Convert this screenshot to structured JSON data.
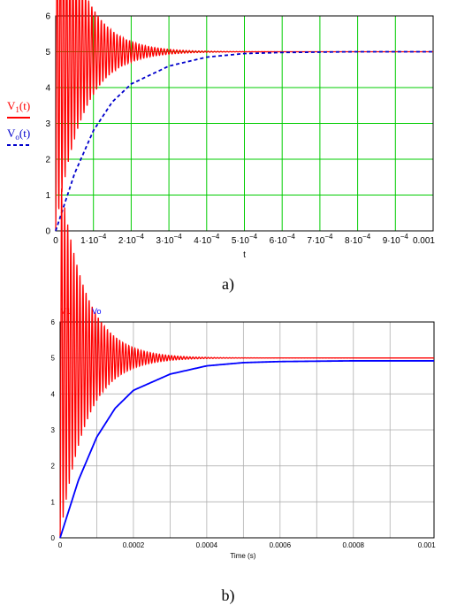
{
  "colors": {
    "v1": "#ff0000",
    "vo_a": "#0000cc",
    "vo_b": "#0000ff",
    "grid_a": "#00cc00",
    "grid_b": "#b0b0b0"
  },
  "chart_data": [
    {
      "type": "line",
      "caption": "a)",
      "xlabel": "t",
      "ylabel": "",
      "xlim": [
        0,
        0.001
      ],
      "ylim": [
        0,
        6
      ],
      "grid": true,
      "x_tick_labels": [
        "0",
        "1·10",
        "2·10",
        "3·10",
        "4·10",
        "5·10",
        "6·10",
        "7·10",
        "8·10",
        "9·10",
        "0.001"
      ],
      "x_tick_exponent": "−4",
      "y_tick_labels": [
        "0",
        "1",
        "2",
        "3",
        "4",
        "5",
        "6"
      ],
      "legend_position": "left",
      "series": [
        {
          "name": "V1(t)",
          "legend_main": "V",
          "legend_sub": "1",
          "legend_suffix": "(t)",
          "style": "solid",
          "description": "damped oscillation: 5·(1 − e^(−t/τ1)·cos(ωt)), τ1≈7e-5 s, f≈120 kHz, peak ≈5.8 near t≈2e-5, settles to 5",
          "final_value": 5,
          "peak": 5.8
        },
        {
          "name": "Vo(t)",
          "legend_main": "V",
          "legend_sub": "o",
          "legend_suffix": "(t)",
          "style": "dashed",
          "x": [
            0,
            5e-05,
            0.0001,
            0.00015,
            0.0002,
            0.0003,
            0.0004,
            0.0005,
            0.0006,
            0.0008,
            0.001
          ],
          "values": [
            0,
            1.6,
            2.8,
            3.6,
            4.1,
            4.6,
            4.85,
            4.95,
            4.98,
            5.0,
            5.0
          ]
        }
      ]
    },
    {
      "type": "line",
      "caption": "b)",
      "xlabel": "Time (s)",
      "ylabel": "",
      "xlim": [
        0,
        0.00102
      ],
      "ylim": [
        0,
        6
      ],
      "grid": true,
      "x_tick_labels": [
        "0",
        "0.0002",
        "0.0004",
        "0.0006",
        "0.0008",
        "0.001"
      ],
      "y_tick_labels": [
        "0",
        "1",
        "2",
        "3",
        "4",
        "5",
        "6"
      ],
      "legend_position": "top-left",
      "series": [
        {
          "name": "V1",
          "style": "solid",
          "description": "damped oscillation, peak ≈5.7 near t≈4e-5, settles to 5.0",
          "final_value": 5.0,
          "peak": 5.7
        },
        {
          "name": "Vo",
          "style": "solid",
          "x": [
            0,
            5e-05,
            0.0001,
            0.00015,
            0.0002,
            0.0003,
            0.0004,
            0.0005,
            0.0006,
            0.0008,
            0.001
          ],
          "values": [
            0,
            1.6,
            2.8,
            3.6,
            4.1,
            4.55,
            4.78,
            4.87,
            4.9,
            4.92,
            4.92
          ]
        }
      ]
    }
  ]
}
